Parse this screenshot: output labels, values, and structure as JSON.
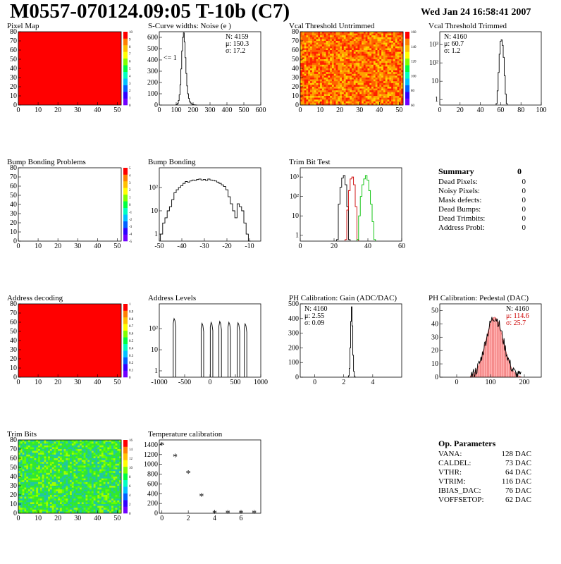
{
  "header": {
    "title": "M0557-070124.09:05 T-10b (C7)",
    "date": "Wed Jan 24 16:58:41 2007"
  },
  "colors": {
    "red": "#ff0000",
    "green": "#00c000",
    "darkred": "#cc0000",
    "pink": "#ffb0b0"
  },
  "chart_data": [
    {
      "id": "pixelmap",
      "type": "heatmap",
      "title": "Pixel Map",
      "fill": "uniform-red",
      "xlim": [
        0,
        52
      ],
      "ylim": [
        0,
        80
      ],
      "xticks": [
        0,
        10,
        20,
        30,
        40,
        50
      ],
      "yticks": [
        0,
        10,
        20,
        30,
        40,
        50,
        60,
        70,
        80
      ],
      "colorbar": {
        "labels": [
          "0",
          "1",
          "2",
          "3",
          "4",
          "5",
          "6",
          "7",
          "8",
          "9",
          "10"
        ]
      }
    },
    {
      "id": "scurve",
      "type": "histogram",
      "title": "S-Curve widths: Noise (e )",
      "xlim": [
        0,
        600
      ],
      "ylim": [
        0,
        650
      ],
      "log": false,
      "xticks": [
        0,
        100,
        200,
        300,
        400,
        500,
        600
      ],
      "yticks": [
        0,
        100,
        200,
        300,
        400,
        500,
        600
      ],
      "stats": [
        "N: 4159",
        "μ: 150.3",
        "σ: 17.2"
      ],
      "annotation": "<= 1",
      "series": [
        {
          "color": "#000000",
          "x": [
            100,
            105,
            110,
            115,
            120,
            125,
            130,
            135,
            140,
            145,
            150,
            155,
            160,
            165,
            170,
            175,
            180,
            185,
            190,
            195,
            200,
            205,
            210,
            215,
            220
          ],
          "y": [
            2,
            5,
            15,
            40,
            90,
            180,
            320,
            480,
            600,
            640,
            560,
            420,
            280,
            170,
            100,
            60,
            35,
            20,
            12,
            8,
            5,
            3,
            2,
            1,
            0
          ]
        }
      ]
    },
    {
      "id": "vcaluntrim",
      "type": "heatmap",
      "title": "Vcal Threshold Untrimmed",
      "fill": "noise-orange",
      "xlim": [
        0,
        52
      ],
      "ylim": [
        0,
        80
      ],
      "xticks": [
        0,
        10,
        20,
        30,
        40,
        50
      ],
      "yticks": [
        0,
        10,
        20,
        30,
        40,
        50,
        60,
        70,
        80
      ],
      "colorbar": {
        "labels": [
          "60",
          "80",
          "100",
          "120",
          "140",
          "160"
        ]
      }
    },
    {
      "id": "vcaltrim",
      "type": "histogram",
      "title": "Vcal Threshold Trimmed",
      "xlim": [
        0,
        100
      ],
      "ylim": [
        0.5,
        5000
      ],
      "log": true,
      "xticks": [
        0,
        20,
        40,
        60,
        80,
        100
      ],
      "yticks": [
        1,
        10,
        100,
        1000
      ],
      "stats": [
        "N: 4160",
        "μ: 60.7",
        "σ:  1.2"
      ],
      "series": [
        {
          "color": "#000000",
          "x": [
            56,
            57,
            58,
            59,
            60,
            61,
            62,
            63,
            64,
            65,
            66
          ],
          "y": [
            0.6,
            3,
            30,
            300,
            1500,
            1800,
            900,
            200,
            20,
            2,
            0.6
          ]
        }
      ]
    },
    {
      "id": "bumpprob",
      "type": "heatmap",
      "title": "Bump Bonding Problems",
      "fill": "empty",
      "xlim": [
        0,
        52
      ],
      "ylim": [
        0,
        80
      ],
      "xticks": [
        0,
        10,
        20,
        30,
        40,
        50
      ],
      "yticks": [
        0,
        10,
        20,
        30,
        40,
        50,
        60,
        70,
        80
      ],
      "colorbar": {
        "labels": [
          "-5",
          "-4",
          "-3",
          "-2",
          "-1",
          "0",
          "1",
          "2",
          "3",
          "4",
          "5"
        ]
      }
    },
    {
      "id": "bump",
      "type": "histogram",
      "title": "Bump Bonding",
      "xlim": [
        -50,
        -5
      ],
      "ylim": [
        0.5,
        700
      ],
      "log": true,
      "xticks": [
        -50,
        -40,
        -30,
        -20,
        -10
      ],
      "yticks": [
        1,
        10,
        100
      ],
      "series": [
        {
          "color": "#000000",
          "x": [
            -49,
            -48,
            -47,
            -46,
            -45,
            -44,
            -43,
            -42,
            -41,
            -40,
            -39,
            -38,
            -37,
            -36,
            -35,
            -34,
            -33,
            -32,
            -31,
            -30,
            -29,
            -28,
            -27,
            -26,
            -25,
            -24,
            -23,
            -22,
            -21,
            -20,
            -19,
            -18,
            -17,
            -16,
            -15,
            -14,
            -13,
            -12,
            -11,
            -10
          ],
          "y": [
            1,
            3,
            5,
            10,
            15,
            30,
            60,
            80,
            100,
            120,
            150,
            180,
            170,
            190,
            210,
            200,
            220,
            230,
            210,
            220,
            200,
            230,
            210,
            200,
            190,
            170,
            150,
            130,
            110,
            80,
            40,
            20,
            10,
            5,
            20,
            15,
            10,
            3,
            1,
            0.5
          ]
        }
      ]
    },
    {
      "id": "trimbit",
      "type": "histogram",
      "title": "Trim Bit Test",
      "xlim": [
        0,
        60
      ],
      "ylim": [
        0.5,
        3000
      ],
      "log": true,
      "xticks": [
        0,
        20,
        40,
        60
      ],
      "yticks": [
        1,
        10,
        100,
        1000
      ],
      "series": [
        {
          "color": "#000000",
          "x": [
            22,
            23,
            24,
            25,
            26,
            27,
            28,
            29
          ],
          "y": [
            0.6,
            40,
            300,
            900,
            1200,
            400,
            30,
            0.6
          ]
        },
        {
          "color": "#cc0000",
          "x": [
            27,
            28,
            29,
            30,
            31,
            32,
            33,
            34
          ],
          "y": [
            0.6,
            20,
            200,
            800,
            1000,
            400,
            30,
            0.6
          ]
        },
        {
          "color": "#00c000",
          "x": [
            34,
            35,
            36,
            37,
            38,
            39,
            40,
            41,
            42,
            43,
            44
          ],
          "y": [
            0.6,
            10,
            100,
            400,
            800,
            1200,
            700,
            200,
            40,
            5,
            0.6
          ]
        }
      ]
    },
    {
      "id": "addrdec",
      "type": "heatmap",
      "title": "Address decoding",
      "fill": "uniform-red",
      "xlim": [
        0,
        52
      ],
      "ylim": [
        0,
        80
      ],
      "xticks": [
        0,
        10,
        20,
        30,
        40,
        50
      ],
      "yticks": [
        0,
        10,
        20,
        30,
        40,
        50,
        60,
        70,
        80
      ],
      "colorbar": {
        "labels": [
          "0",
          "0.1",
          "0.2",
          "0.3",
          "0.4",
          "0.5",
          "0.6",
          "0.7",
          "0.8",
          "0.9",
          "1"
        ]
      }
    },
    {
      "id": "addrlev",
      "type": "histogram",
      "title": "Address Levels",
      "xlim": [
        -1000,
        1000
      ],
      "ylim": [
        0.5,
        1500
      ],
      "log": true,
      "xticks": [
        -1000,
        -500,
        0,
        500,
        1000
      ],
      "yticks": [
        1,
        10,
        100
      ],
      "series": [
        {
          "color": "#000000",
          "peaks": [
            -700,
            -150,
            30,
            200,
            380,
            560,
            700
          ],
          "heights": [
            300,
            180,
            200,
            220,
            200,
            190,
            170
          ]
        }
      ]
    },
    {
      "id": "phgain",
      "type": "histogram",
      "title": "PH Calibration: Gain (ADC/DAC)",
      "xlim": [
        -1,
        6
      ],
      "ylim": [
        0,
        500
      ],
      "log": false,
      "xticks": [
        0,
        2,
        4
      ],
      "yticks": [
        0,
        100,
        200,
        300,
        400,
        500
      ],
      "stats": [
        "N: 4160",
        "μ: 2.55",
        "σ: 0.09"
      ],
      "series": [
        {
          "color": "#000000",
          "x": [
            2.3,
            2.35,
            2.4,
            2.45,
            2.5,
            2.55,
            2.6,
            2.65,
            2.7,
            2.75,
            2.8
          ],
          "y": [
            0,
            10,
            60,
            200,
            380,
            480,
            350,
            150,
            40,
            8,
            0
          ]
        }
      ]
    },
    {
      "id": "phped",
      "type": "histogram",
      "title": "PH Calibration: Pedestal (DAC)",
      "xlim": [
        -50,
        250
      ],
      "ylim": [
        0,
        55
      ],
      "log": false,
      "xticks": [
        0,
        100,
        200
      ],
      "yticks": [
        0,
        10,
        20,
        30,
        40,
        50
      ],
      "stats": [
        "N: 4160",
        "μ: 114.6",
        "σ: 25.7"
      ],
      "stats_colors": [
        "#000000",
        "#cc0000",
        "#cc0000"
      ],
      "series": [
        {
          "color": "#000000",
          "mu": 112,
          "sigma": 26,
          "peak": 45,
          "from": 40,
          "to": 190
        }
      ]
    },
    {
      "id": "trimbits",
      "type": "heatmap",
      "title": "Trim Bits",
      "fill": "noise-green",
      "xlim": [
        0,
        52
      ],
      "ylim": [
        0,
        80
      ],
      "xticks": [
        0,
        10,
        20,
        30,
        40,
        50
      ],
      "yticks": [
        0,
        10,
        20,
        30,
        40,
        50,
        60,
        70,
        80
      ],
      "colorbar": {
        "labels": [
          "0",
          "2",
          "4",
          "6",
          "8",
          "10",
          "12",
          "14",
          "16"
        ]
      }
    },
    {
      "id": "temp",
      "type": "scatter",
      "title": "Temperature calibration",
      "xlim": [
        -0.2,
        7.5
      ],
      "ylim": [
        0,
        1500
      ],
      "log": false,
      "xticks": [
        0,
        2,
        4,
        6
      ],
      "yticks": [
        0,
        200,
        400,
        600,
        800,
        1000,
        1200,
        1400
      ],
      "series": [
        {
          "color": "#000000",
          "x": [
            0,
            1,
            2,
            3,
            4,
            5,
            6,
            7
          ],
          "y": [
            1400,
            1160,
            820,
            350,
            10,
            10,
            10,
            5
          ]
        }
      ]
    }
  ],
  "summary": {
    "title": "Summary",
    "total": "0",
    "rows": [
      {
        "label": "Dead Pixels:",
        "value": "0"
      },
      {
        "label": "Noisy Pixels:",
        "value": "0"
      },
      {
        "label": "Mask defects:",
        "value": "0"
      },
      {
        "label": "Dead Bumps:",
        "value": "0"
      },
      {
        "label": "Dead Trimbits:",
        "value": "0"
      },
      {
        "label": "Address Probl:",
        "value": "0"
      }
    ]
  },
  "op_params": {
    "title": "Op. Parameters",
    "rows": [
      {
        "label": "VANA:",
        "value": "128 DAC"
      },
      {
        "label": "CALDEL:",
        "value": "73 DAC"
      },
      {
        "label": "VTHR:",
        "value": "64 DAC"
      },
      {
        "label": "VTRIM:",
        "value": "116 DAC"
      },
      {
        "label": "IBIAS_DAC:",
        "value": "76 DAC"
      },
      {
        "label": "VOFFSETOP:",
        "value": "62 DAC"
      }
    ]
  }
}
